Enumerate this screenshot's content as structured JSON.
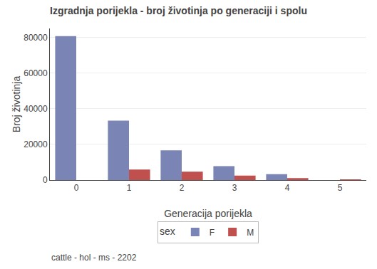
{
  "chart_data": {
    "type": "bar",
    "title": "Izgradnja porijekla - broj životinja po generaciji i spolu",
    "subtitle": "cattle - hol - ms - 2202",
    "xlabel": "Generacija porijekla",
    "ylabel": "Broj životinja",
    "categories": [
      0,
      1,
      2,
      3,
      4,
      5
    ],
    "series": [
      {
        "name": "F",
        "color": "#7b85b5",
        "values": [
          80700,
          33300,
          16700,
          7800,
          3300,
          0
        ]
      },
      {
        "name": "M",
        "color": "#c0504d",
        "values": [
          0,
          5900,
          4700,
          2500,
          1100,
          200
        ]
      }
    ],
    "legend_title": "sex",
    "legend": "bottom",
    "ylim": [
      0,
      85000
    ],
    "yticks": [
      0,
      20000,
      40000,
      60000,
      80000
    ],
    "grid": true
  }
}
